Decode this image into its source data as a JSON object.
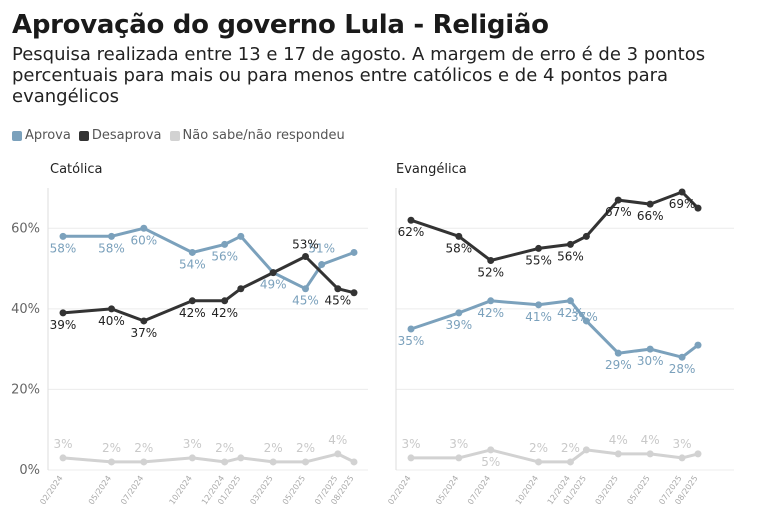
{
  "title": "Aprovação do governo Lula - Religião",
  "subtitle": "Pesquisa realizada entre 13 e 17 de agosto. A margem de erro é de 3 pontos percentuais para mais ou para menos entre católicos e de 4 pontos para evangélicos",
  "legend": [
    {
      "name": "Aprova",
      "color": "#7ba1bc"
    },
    {
      "name": "Desaprova",
      "color": "#333333"
    },
    {
      "name": "Não sabe/não respondeu",
      "color": "#d2d2d2"
    }
  ],
  "chart_data": [
    {
      "type": "line",
      "title": "Católica",
      "x": [
        "02/2024",
        "04/2024",
        "05/2024",
        "07/2024",
        "10/2024",
        "12/2024",
        "01/2025",
        "03/2025",
        "04/2025",
        "05/2025",
        "06/2025",
        "07/2025",
        "08/2025"
      ],
      "tick_labels": [
        "02/2024",
        "",
        "05/2024",
        "07/2024",
        "10/2024",
        "12/2024",
        "01/2025",
        "03/2025",
        "",
        "05/2025",
        "",
        "07/2025",
        "08/2025"
      ],
      "ylim": [
        0,
        70
      ],
      "yticks": [
        0,
        20,
        40,
        60
      ],
      "ytick_labels": [
        "0%",
        "20%",
        "40%",
        "60%"
      ],
      "grid": true,
      "series": [
        {
          "name": "Aprova",
          "values": [
            58,
            null,
            58,
            60,
            54,
            56,
            58,
            49,
            null,
            45,
            51,
            null,
            54
          ],
          "labels": [
            "58%",
            "",
            "58%",
            "60%",
            "54%",
            "56%",
            "",
            "49%",
            "",
            "45%",
            "51%",
            "",
            ""
          ]
        },
        {
          "name": "Desaprova",
          "values": [
            39,
            null,
            40,
            37,
            42,
            42,
            45,
            49,
            null,
            53,
            null,
            45,
            44
          ],
          "labels": [
            "39%",
            "",
            "40%",
            "37%",
            "42%",
            "42%",
            "",
            "",
            "",
            "53%",
            "",
            "45%",
            ""
          ]
        },
        {
          "name": "Não sabe/não respondeu",
          "values": [
            3,
            null,
            2,
            2,
            3,
            2,
            3,
            2,
            null,
            2,
            null,
            4,
            2
          ],
          "labels": [
            "3%",
            "",
            "2%",
            "2%",
            "3%",
            "2%",
            "",
            "2%",
            "",
            "2%",
            "",
            "4%",
            ""
          ]
        }
      ]
    },
    {
      "type": "line",
      "title": "Evangélica",
      "x": [
        "02/2024",
        "04/2024",
        "05/2024",
        "07/2024",
        "10/2024",
        "12/2024",
        "01/2025",
        "03/2025",
        "04/2025",
        "05/2025",
        "06/2025",
        "07/2025",
        "08/2025"
      ],
      "tick_labels": [
        "02/2024",
        "",
        "05/2024",
        "07/2024",
        "10/2024",
        "12/2024",
        "01/2025",
        "03/2025",
        "",
        "05/2025",
        "",
        "07/2025",
        "08/2025"
      ],
      "ylim": [
        0,
        70
      ],
      "yticks": [
        0,
        20,
        40,
        60
      ],
      "ytick_labels": [
        "0%",
        "20%",
        "40%",
        "60%"
      ],
      "grid": true,
      "series": [
        {
          "name": "Aprova",
          "values": [
            35,
            null,
            39,
            42,
            41,
            42,
            37,
            29,
            null,
            30,
            null,
            28,
            31
          ],
          "labels": [
            "35%",
            "",
            "39%",
            "42%",
            "41%",
            "42%",
            "37%",
            "29%",
            "",
            "30%",
            "",
            "28%",
            ""
          ]
        },
        {
          "name": "Desaprova",
          "values": [
            62,
            null,
            58,
            52,
            55,
            56,
            58,
            67,
            null,
            66,
            null,
            69,
            65
          ],
          "labels": [
            "62%",
            "",
            "58%",
            "52%",
            "55%",
            "56%",
            "",
            "67%",
            "",
            "66%",
            "",
            "69%",
            ""
          ]
        },
        {
          "name": "Não sabe/não respondeu",
          "values": [
            3,
            null,
            3,
            5,
            2,
            2,
            5,
            4,
            null,
            4,
            null,
            3,
            4
          ],
          "labels": [
            "3%",
            "",
            "3%",
            "5%",
            "2%",
            "2%",
            "",
            "4%",
            "",
            "4%",
            "",
            "3%",
            ""
          ]
        }
      ]
    }
  ]
}
